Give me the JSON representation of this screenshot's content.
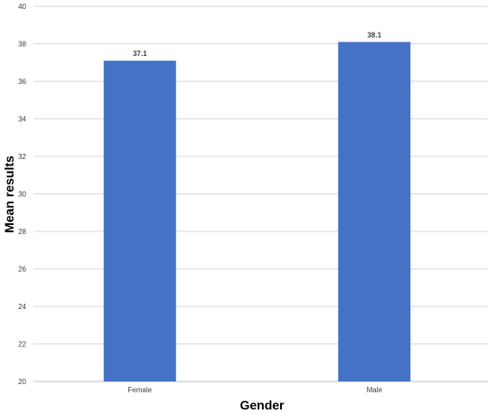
{
  "chart_data": {
    "type": "bar",
    "categories": [
      "Female",
      "Male"
    ],
    "values": [
      37.1,
      38.1
    ],
    "data_labels": [
      "37.1",
      "38.1"
    ],
    "title": "",
    "xlabel": "Gender",
    "ylabel": "Mean results",
    "ylim": [
      20,
      40
    ],
    "yticks": [
      "20",
      "22",
      "24",
      "26",
      "28",
      "30",
      "32",
      "34",
      "36",
      "38",
      "40"
    ],
    "grid": true,
    "legend": "none",
    "bar_color": "#4472c4"
  }
}
